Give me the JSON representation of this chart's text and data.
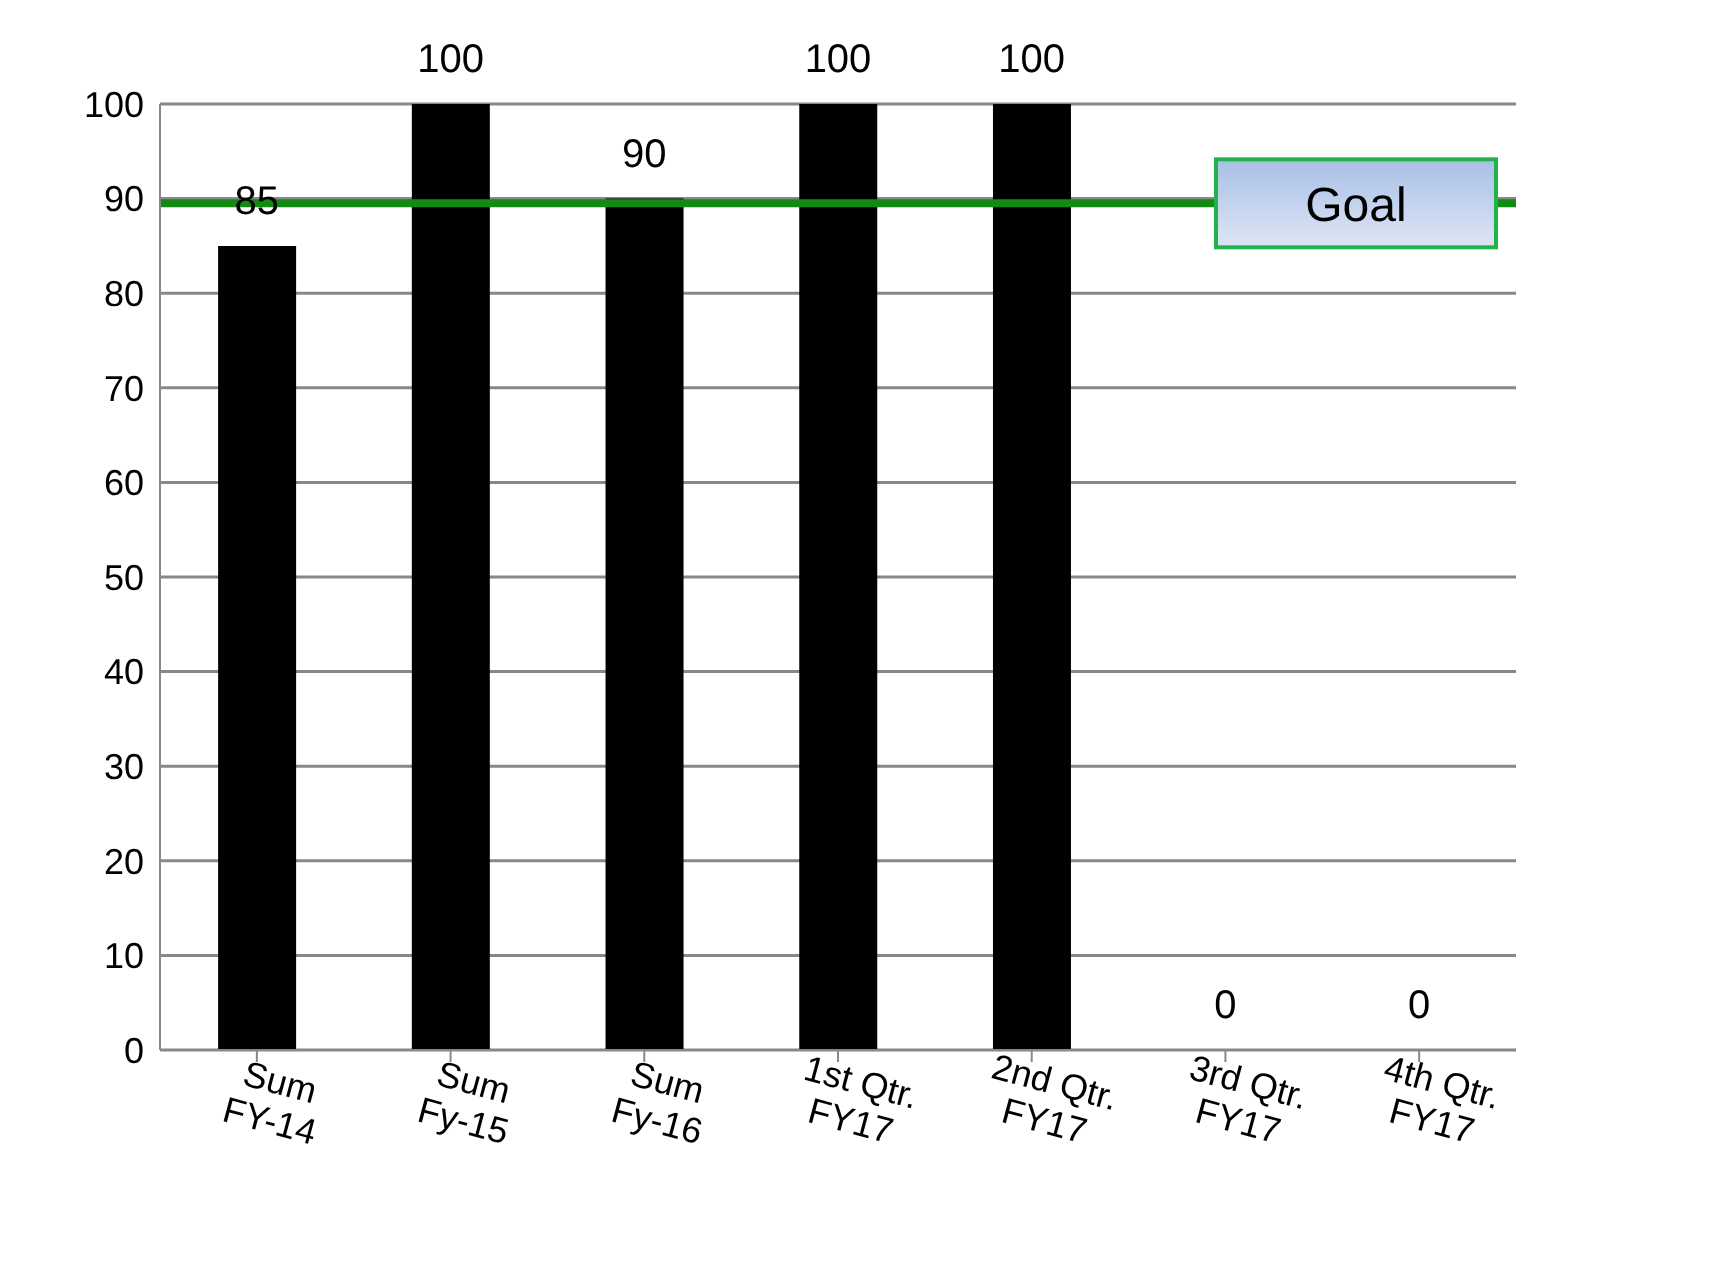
{
  "chart_data": {
    "type": "bar",
    "categories": [
      "Sum FY-14",
      "Sum Fy-15",
      "Sum Fy-16",
      "1st Qtr. FY17",
      "2nd Qtr. FY17",
      "3rd Qtr. FY17",
      "4th Qtr. FY17"
    ],
    "values": [
      85,
      100,
      90,
      100,
      100,
      0,
      0
    ],
    "color": "#000000",
    "ylim": [
      0,
      100
    ],
    "yticks": [
      0,
      10,
      20,
      30,
      40,
      50,
      60,
      70,
      80,
      90,
      100
    ],
    "grid": "y",
    "data_labels": true,
    "ref_lines": [
      {
        "axis": "y",
        "value": 89.5,
        "label": "Goal",
        "color": "#138a13"
      }
    ]
  }
}
